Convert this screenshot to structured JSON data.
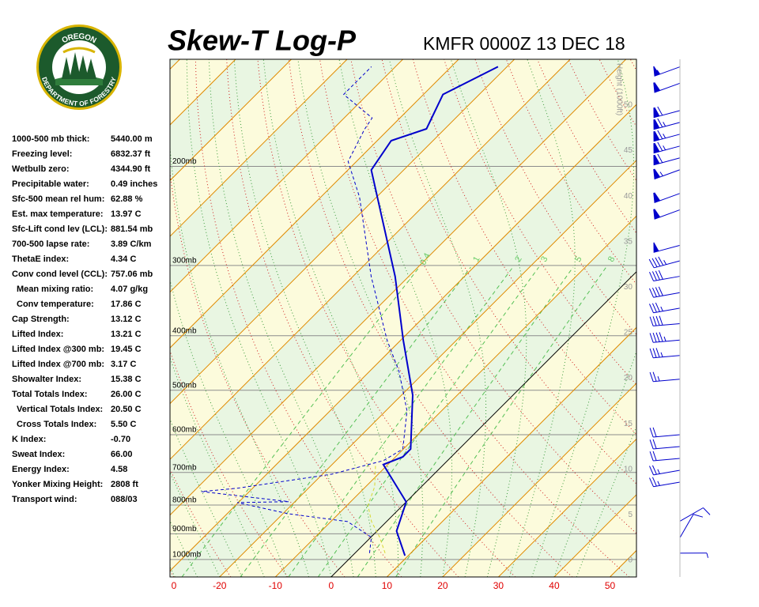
{
  "logo": {
    "top": "OREGON",
    "bottom": "DEPARTMENT OF FORESTRY"
  },
  "stats": [
    {
      "label": "1000-500 mb thick:",
      "value": "5440.00 m"
    },
    {
      "label": "Freezing level:",
      "value": "6832.37 ft"
    },
    {
      "label": "Wetbulb zero:",
      "value": "4344.90 ft"
    },
    {
      "label": "Precipitable water:",
      "value": "0.49 inches"
    },
    {
      "label": "Sfc-500 mean rel hum:",
      "value": "62.88 %"
    },
    {
      "label": "Est. max temperature:",
      "value": "13.97 C"
    },
    {
      "label": "Sfc-Lift cond lev (LCL):",
      "value": "881.54 mb"
    },
    {
      "label": "700-500 lapse rate:",
      "value": "3.89 C/km"
    },
    {
      "label": "ThetaE index:",
      "value": "4.34 C"
    },
    {
      "label": "Conv cond level (CCL):",
      "value": "757.06 mb"
    },
    {
      "label": "Mean mixing ratio:",
      "value": "4.07 g/kg"
    },
    {
      "label": "Conv temperature:",
      "value": "17.86 C"
    },
    {
      "label": "Cap Strength:",
      "value": "13.12 C"
    },
    {
      "label": "Lifted Index:",
      "value": "13.21 C"
    },
    {
      "label": "Lifted Index @300 mb:",
      "value": "19.45 C"
    },
    {
      "label": "Lifted Index @700 mb:",
      "value": "3.17 C"
    },
    {
      "label": "Showalter Index:",
      "value": "15.38 C"
    },
    {
      "label": "Total Totals Index:",
      "value": "26.00 C"
    },
    {
      "label": "Vertical Totals Index:",
      "value": "20.50 C"
    },
    {
      "label": "Cross Totals Index:",
      "value": "5.50 C"
    },
    {
      "label": "K Index:",
      "value": "-0.70"
    },
    {
      "label": "Sweat Index:",
      "value": "66.00"
    },
    {
      "label": "Energy Index:",
      "value": "4.58"
    },
    {
      "label": "Yonker Mixing Height:",
      "value": "2808 ft"
    },
    {
      "label": "Transport wind:",
      "value": "088/03"
    }
  ],
  "chart_data": {
    "type": "skewt",
    "title": "Skew-T Log-P",
    "subtitle": "KMFR 0000Z 13 DEC 18",
    "xlim": [
      -28.9,
      54.75
    ],
    "xticks": [
      {
        "value": -30,
        "label": "0"
      },
      -20,
      -10,
      0,
      10,
      20,
      30,
      40,
      50
    ],
    "ylim": [
      1074,
      129
    ],
    "log_y": true,
    "yticks": [
      {
        "value": 1000,
        "label": "1000mb"
      },
      {
        "value": 900,
        "label": "900mb"
      },
      {
        "value": 800,
        "label": "800mb"
      },
      {
        "value": 700,
        "label": "700mb"
      },
      {
        "value": 600,
        "label": "600mb"
      },
      {
        "value": 500,
        "label": "500mb"
      },
      {
        "value": 400,
        "label": "400mb"
      },
      {
        "value": 300,
        "label": "300mb"
      },
      {
        "value": 200,
        "label": "200mb"
      }
    ],
    "y2label": "Height (1000ft)",
    "y2lim": [
      -1.82,
      55.03
    ],
    "y2ticks": [
      0,
      5,
      10,
      15,
      20,
      25,
      30,
      35,
      40,
      45,
      50
    ],
    "mixing_ratios": [
      0.4,
      1,
      2,
      3,
      5,
      8
    ],
    "series": [
      {
        "color": "#0000cc",
        "line_style": "solid",
        "pressures": [
          984,
          890,
          790,
          678,
          657,
          636,
          510,
          407,
          314,
          203,
          180,
          171.5,
          149,
          133
        ],
        "values": [
          9.4,
          3.5,
          0,
          -10.8,
          -8.7,
          -8.7,
          -18.0,
          -29.6,
          -42.4,
          -65.8,
          -67.5,
          -63.3,
          -66.5,
          -61.6
        ]
      },
      {
        "color": "#0000cc",
        "line_style": "dashed",
        "pressures": [
          974,
          913,
          856,
          829,
          792,
          789,
          757,
          747,
          705,
          667,
          636,
          544,
          463,
          407,
          314,
          227,
          196,
          172,
          164,
          149,
          133
        ],
        "values": [
          2.6,
          0.1,
          -7.0,
          -19.0,
          -30.2,
          -21.1,
          -38.6,
          -32.8,
          -18.3,
          -11.5,
          -10.1,
          -16.2,
          -24.7,
          -32.5,
          -46.7,
          -63.0,
          -71.5,
          -74.3,
          -75.0,
          -84.3,
          -84.3
        ]
      },
      {
        "color": "#d8d830",
        "line_style": "dashed",
        "pressures": [
          974,
          913,
          856,
          802,
          742,
          678
        ],
        "values": [
          5.4,
          1.6,
          -2.7,
          -6.2,
          -8.4,
          -12.2
        ]
      }
    ],
    "winds": {
      "axis": "y2",
      "color": "#0000cc",
      "heights": [
        54.2,
        52.4,
        49.4,
        48.1,
        46.8,
        45.5,
        44.2,
        42.9,
        40.3,
        38.5,
        34.6,
        32.9,
        31.2,
        29.4,
        27.7,
        26.0,
        24.2,
        22.5,
        19.9,
        13.8,
        12.5,
        11.2,
        9.9,
        8.6,
        4.3,
        2.5,
        0.8
      ],
      "directions": [
        250,
        250,
        255,
        255,
        255,
        255,
        255,
        250,
        250,
        250,
        255,
        255,
        260,
        260,
        260,
        265,
        265,
        265,
        265,
        265,
        265,
        265,
        260,
        260,
        60,
        30,
        90
      ],
      "speeds": [
        55,
        60,
        70,
        75,
        75,
        75,
        70,
        65,
        60,
        60,
        50,
        45,
        40,
        40,
        35,
        40,
        45,
        35,
        25,
        20,
        20,
        20,
        25,
        25,
        10,
        10,
        5
      ]
    }
  }
}
